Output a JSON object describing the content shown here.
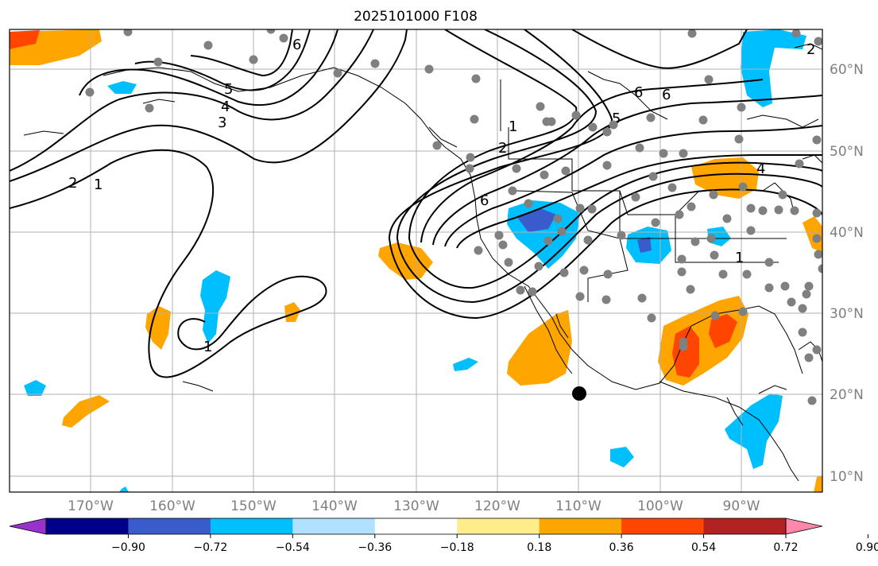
{
  "title": "2025101000 F108",
  "lat_labels": [
    "60°N",
    "50°N",
    "40°N",
    "30°N",
    "20°N",
    "10°N"
  ],
  "lon_labels": [
    "170°W",
    "160°W",
    "150°W",
    "140°W",
    "130°W",
    "120°W",
    "110°W",
    "100°W",
    "90°W"
  ],
  "colorbar": {
    "ticks": [
      "−0.90",
      "−0.72",
      "−0.54",
      "−0.36",
      "−0.18",
      "0.18",
      "0.36",
      "0.54",
      "0.72",
      "0.90"
    ],
    "colors": [
      "#9932cc",
      "#00008b",
      "#3a5bcc",
      "#00bfff",
      "#b0e2ff",
      "#ffffff",
      "#ffec8b",
      "#ffa500",
      "#ff4500",
      "#b22222",
      "#ff88aa"
    ]
  },
  "contour_labels": [
    "6",
    "5",
    "4",
    "3",
    "2",
    "1",
    "1",
    "2",
    "6",
    "5",
    "6",
    "4",
    "1",
    "1",
    "2",
    "6"
  ],
  "map_extent": {
    "lon_min": -180,
    "lon_max": -80,
    "lat_min": 8,
    "lat_max": 65
  }
}
